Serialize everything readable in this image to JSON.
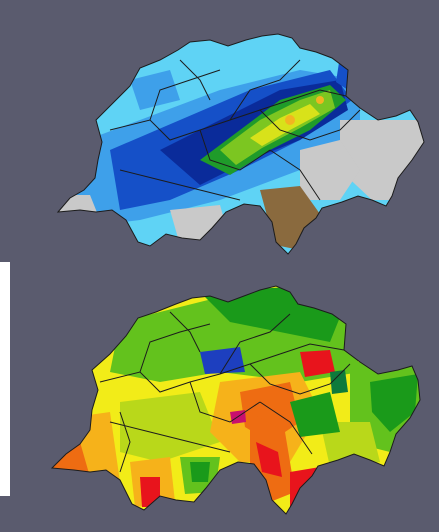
{
  "maps": [
    {
      "id": "top",
      "palette": [
        "#5fd3f5",
        "#3ea0ea",
        "#1550c8",
        "#0a2b9a",
        "#1f9b2a",
        "#7cc621",
        "#d8e21a",
        "#f2b521",
        "#c9c9c9",
        "#8a6a3e"
      ]
    },
    {
      "id": "bottom",
      "palette": [
        "#1a9a1a",
        "#63c21d",
        "#b9d81a",
        "#f2ec18",
        "#f6b21a",
        "#ee6c12",
        "#e8141c",
        "#c8106e",
        "#1d3fbf",
        "#0e7a3c"
      ]
    }
  ],
  "colors": {
    "background": "#5a5b6e",
    "border_lines": "#1c1c1c"
  }
}
